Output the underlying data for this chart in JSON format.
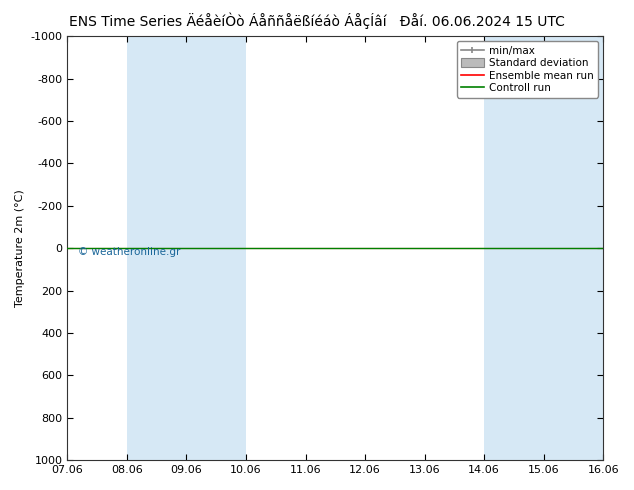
{
  "title": "ENS Time Series ÄéåèíÒò Áåññåëßíéáò ÁåçÍâí",
  "title2": "Đåí. 06.06.2024 15 UTC",
  "ylabel": "Temperature 2m (°C)",
  "watermark": "© weatheronline.gr",
  "x_labels": [
    "07.06",
    "08.06",
    "09.06",
    "10.06",
    "11.06",
    "12.06",
    "13.06",
    "14.06",
    "15.06",
    "16.06"
  ],
  "y_ticks": [
    -1000,
    -800,
    -600,
    -400,
    -200,
    0,
    200,
    400,
    600,
    800,
    1000
  ],
  "ylim_bottom": 1000,
  "ylim_top": -1000,
  "xlim_start": 0,
  "xlim_end": 9,
  "shaded_bands": [
    [
      1,
      2
    ],
    [
      2,
      3
    ],
    [
      7,
      8
    ],
    [
      8,
      9
    ]
  ],
  "shade_color": "#d6e8f5",
  "ensemble_mean_color": "#ff0000",
  "control_run_color": "#008000",
  "minmax_color": "#888888",
  "std_dev_color": "#bbbbbb",
  "bg_color": "#ffffff",
  "plot_bg_color": "#ffffff",
  "legend_labels": [
    "min/max",
    "Standard deviation",
    "Ensemble mean run",
    "Controll run"
  ],
  "flat_line_y": 0,
  "title_fontsize": 10,
  "tick_fontsize": 8,
  "legend_fontsize": 7.5
}
